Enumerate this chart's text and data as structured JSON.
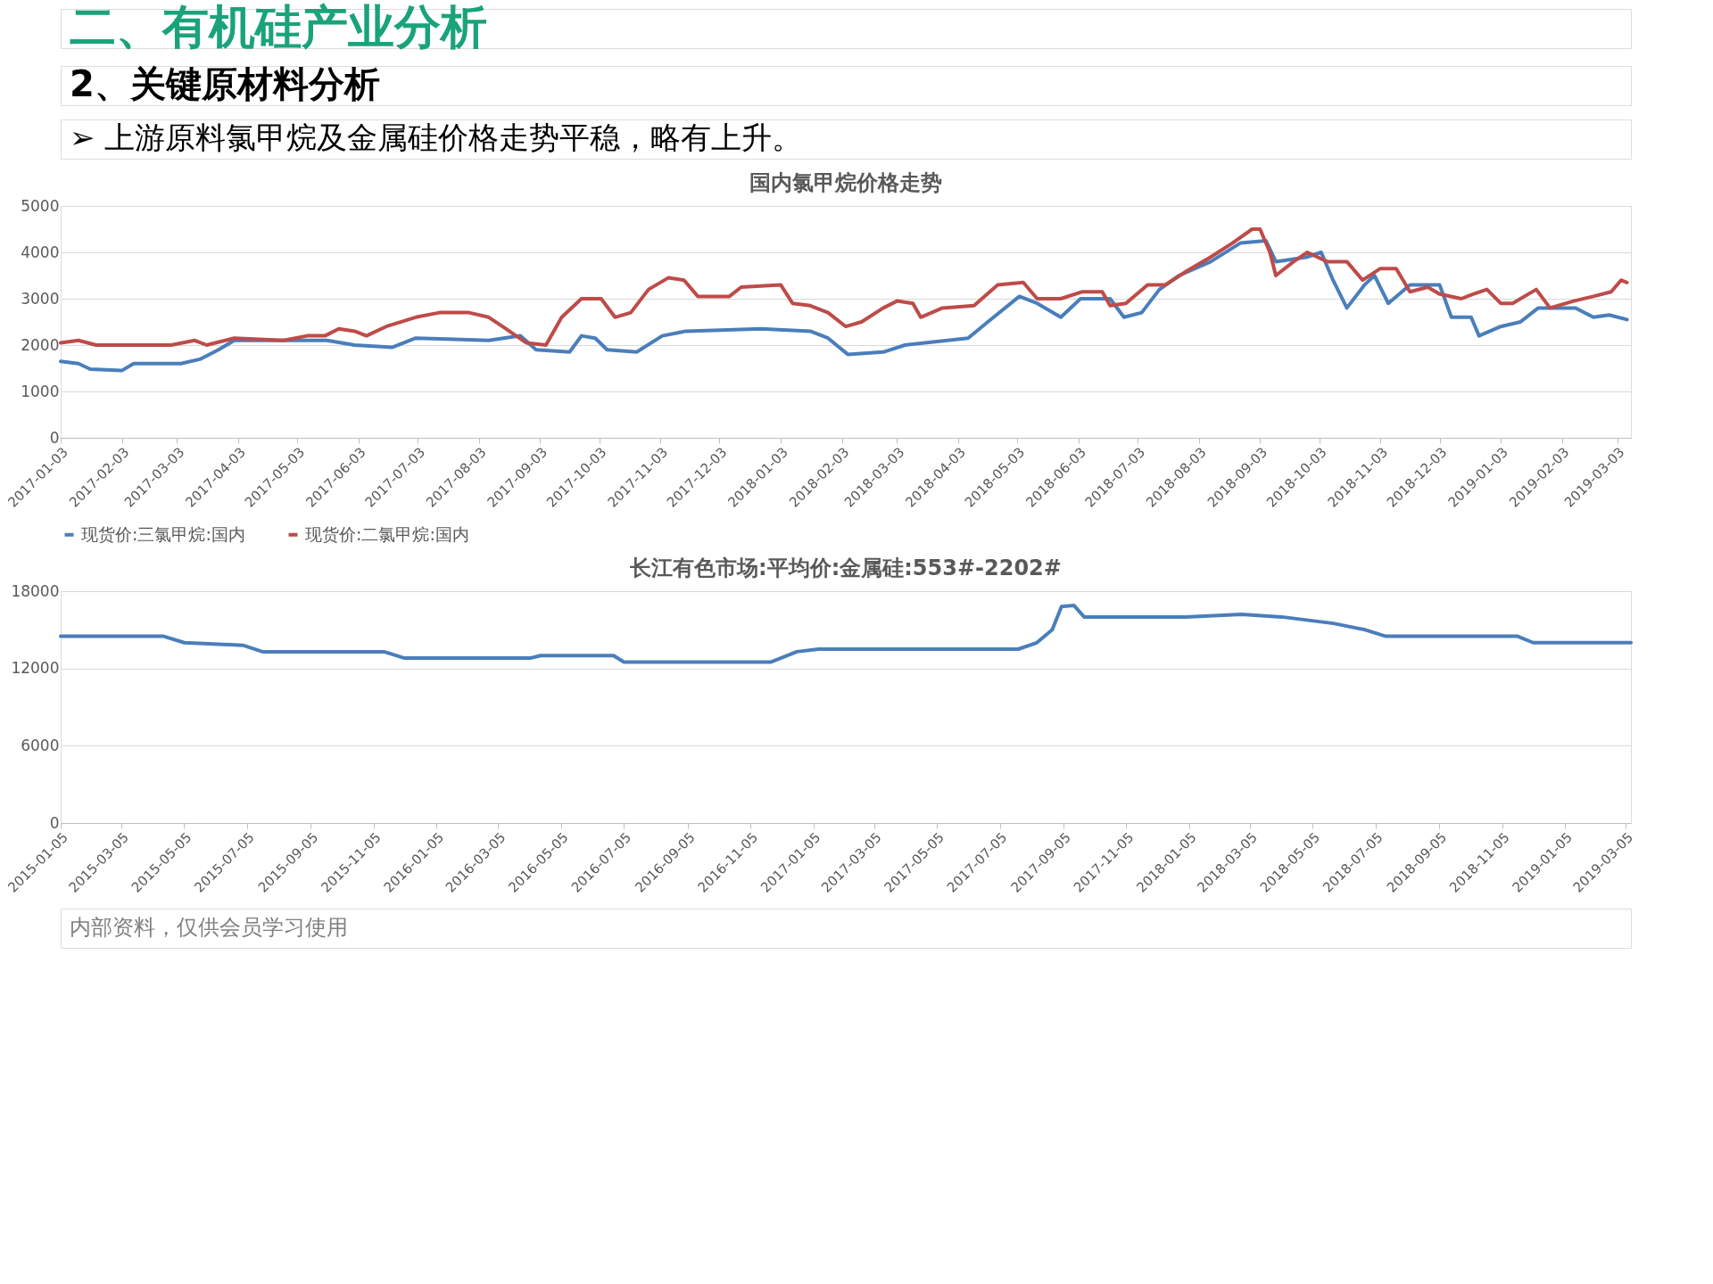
{
  "chart_data": [
    {
      "type": "line",
      "title": "国内氯甲烷价格走势",
      "annotations": [
        "二、有机硅产业分析",
        "2、关键原材料分析",
        "➢ 上游原料氯甲烷及金属硅价格走势平稳，略有上升。"
      ],
      "ylim": [
        0,
        5000
      ],
      "yticks": [
        0,
        1000,
        2000,
        3000,
        4000,
        5000
      ],
      "xlim": [
        "2017-01-03",
        "2019-03-10"
      ],
      "xticks": [
        "2017-01-03",
        "2017-02-03",
        "2017-03-03",
        "2017-04-03",
        "2017-05-03",
        "2017-06-03",
        "2017-07-03",
        "2017-08-03",
        "2017-09-03",
        "2017-10-03",
        "2017-11-03",
        "2017-12-03",
        "2018-01-03",
        "2018-02-03",
        "2018-03-03",
        "2018-04-03",
        "2018-05-03",
        "2018-06-03",
        "2018-07-03",
        "2018-08-03",
        "2018-09-03",
        "2018-10-03",
        "2018-11-03",
        "2018-12-03",
        "2019-01-03",
        "2019-02-03",
        "2019-03-03"
      ],
      "grid": "y",
      "legend": "bottom",
      "marker": "none",
      "line_style": "solid",
      "series": [
        {
          "name": "现货价:三氯甲烷:国内",
          "color": "#4a7ebb",
          "x": [
            "2017-01-03",
            "2017-01-12",
            "2017-01-18",
            "2017-02-03",
            "2017-02-09",
            "2017-03-05",
            "2017-03-15",
            "2017-03-24",
            "2017-04-01",
            "2017-05-18",
            "2017-06-01",
            "2017-06-20",
            "2017-07-02",
            "2017-08-08",
            "2017-08-24",
            "2017-09-01",
            "2017-09-18",
            "2017-09-24",
            "2017-10-01",
            "2017-10-07",
            "2017-10-22",
            "2017-11-04",
            "2017-11-16",
            "2017-12-24",
            "2018-01-18",
            "2018-01-27",
            "2018-02-06",
            "2018-02-24",
            "2018-03-07",
            "2018-04-08",
            "2018-04-18",
            "2018-05-04",
            "2018-05-13",
            "2018-05-25",
            "2018-06-04",
            "2018-06-19",
            "2018-06-26",
            "2018-07-05",
            "2018-07-14",
            "2018-07-24",
            "2018-08-09",
            "2018-08-24",
            "2018-09-06",
            "2018-09-11",
            "2018-09-27",
            "2018-10-04",
            "2018-10-10",
            "2018-10-17",
            "2018-10-26",
            "2018-10-31",
            "2018-11-07",
            "2018-11-18",
            "2018-12-03",
            "2018-12-09",
            "2018-12-19",
            "2018-12-23",
            "2019-01-03",
            "2019-01-13",
            "2019-01-22",
            "2019-02-10",
            "2019-02-19",
            "2019-02-27",
            "2019-03-08"
          ],
          "values": [
            1650,
            1600,
            1480,
            1450,
            1600,
            1600,
            1700,
            1900,
            2100,
            2100,
            2000,
            1950,
            2150,
            2100,
            2200,
            1900,
            1850,
            2200,
            2150,
            1900,
            1850,
            2200,
            2300,
            2350,
            2300,
            2150,
            1800,
            1850,
            2000,
            2150,
            2500,
            3050,
            2900,
            2600,
            3000,
            3000,
            2600,
            2700,
            3200,
            3500,
            3800,
            4200,
            4250,
            3800,
            3900,
            4000,
            3400,
            2800,
            3300,
            3500,
            2900,
            3300,
            3300,
            2600,
            2600,
            2200,
            2400,
            2500,
            2800,
            2800,
            2600,
            2650,
            2550
          ]
        },
        {
          "name": "现货价:二氯甲烷:国内",
          "color": "#be4b48",
          "x": [
            "2017-01-03",
            "2017-01-12",
            "2017-01-21",
            "2017-02-28",
            "2017-03-12",
            "2017-03-18",
            "2017-04-01",
            "2017-04-26",
            "2017-05-08",
            "2017-05-17",
            "2017-05-24",
            "2017-06-01",
            "2017-06-07",
            "2017-06-17",
            "2017-07-02",
            "2017-07-14",
            "2017-07-29",
            "2017-08-08",
            "2017-08-15",
            "2017-08-27",
            "2017-09-06",
            "2017-09-14",
            "2017-09-24",
            "2017-10-04",
            "2017-10-11",
            "2017-10-19",
            "2017-10-28",
            "2017-11-07",
            "2017-11-15",
            "2017-11-22",
            "2017-12-08",
            "2017-12-14",
            "2018-01-03",
            "2018-01-09",
            "2018-01-18",
            "2018-01-27",
            "2018-02-05",
            "2018-02-13",
            "2018-02-24",
            "2018-03-03",
            "2018-03-11",
            "2018-03-15",
            "2018-03-26",
            "2018-04-11",
            "2018-04-23",
            "2018-05-06",
            "2018-05-13",
            "2018-05-25",
            "2018-06-05",
            "2018-06-15",
            "2018-06-19",
            "2018-06-27",
            "2018-07-08",
            "2018-07-17",
            "2018-07-28",
            "2018-08-09",
            "2018-08-20",
            "2018-08-30",
            "2018-09-03",
            "2018-09-08",
            "2018-09-11",
            "2018-09-20",
            "2018-09-27",
            "2018-10-07",
            "2018-10-17",
            "2018-10-25",
            "2018-11-03",
            "2018-11-11",
            "2018-11-18",
            "2018-11-27",
            "2018-12-03",
            "2018-12-14",
            "2018-12-20",
            "2018-12-27",
            "2019-01-03",
            "2019-01-09",
            "2019-01-21",
            "2019-01-28",
            "2019-02-09",
            "2019-02-19",
            "2019-02-28",
            "2019-03-05",
            "2019-03-08"
          ],
          "values": [
            2050,
            2100,
            2000,
            2000,
            2100,
            2000,
            2150,
            2100,
            2200,
            2200,
            2350,
            2300,
            2200,
            2400,
            2600,
            2700,
            2700,
            2600,
            2400,
            2050,
            2000,
            2600,
            3000,
            3000,
            2600,
            2700,
            3200,
            3450,
            3400,
            3050,
            3050,
            3250,
            3300,
            2900,
            2850,
            2700,
            2400,
            2500,
            2800,
            2950,
            2900,
            2600,
            2800,
            2850,
            3300,
            3350,
            3000,
            3000,
            3150,
            3150,
            2850,
            2900,
            3300,
            3300,
            3600,
            3900,
            4200,
            4500,
            4500,
            4000,
            3500,
            3800,
            4000,
            3800,
            3800,
            3400,
            3650,
            3650,
            3150,
            3250,
            3100,
            3000,
            3100,
            3200,
            2900,
            2900,
            3200,
            2800,
            2950,
            3050,
            3150,
            3400,
            3350
          ]
        }
      ]
    },
    {
      "type": "line",
      "title": "长江有色市场:平均价:金属硅:553#-2202#",
      "annotations": [
        "内部资料，仅供会员学习使用"
      ],
      "ylim": [
        0,
        18000
      ],
      "yticks": [
        0,
        6000,
        12000,
        18000
      ],
      "xlim": [
        "2015-01-05",
        "2019-03-10"
      ],
      "xticks": [
        "2015-01-05",
        "2015-03-05",
        "2015-05-05",
        "2015-07-05",
        "2015-09-05",
        "2015-11-05",
        "2016-01-05",
        "2016-03-05",
        "2016-05-05",
        "2016-07-05",
        "2016-09-05",
        "2016-11-05",
        "2017-01-05",
        "2017-03-05",
        "2017-05-05",
        "2017-07-05",
        "2017-09-05",
        "2017-11-05",
        "2018-01-05",
        "2018-03-05",
        "2018-05-05",
        "2018-07-05",
        "2018-09-05",
        "2018-11-05",
        "2019-01-05",
        "2019-03-05"
      ],
      "grid": "y",
      "marker": "none",
      "line_style": "solid",
      "series": [
        {
          "color": "#4a7ebb",
          "x": [
            "2015-01-05",
            "2015-04-15",
            "2015-05-05",
            "2015-07-01",
            "2015-07-20",
            "2015-11-15",
            "2015-12-05",
            "2016-04-05",
            "2016-04-15",
            "2016-06-25",
            "2016-07-05",
            "2016-11-25",
            "2016-12-20",
            "2017-01-10",
            "2017-07-23",
            "2017-08-10",
            "2017-08-25",
            "2017-09-03",
            "2017-09-15",
            "2017-09-25",
            "2018-01-01",
            "2018-02-25",
            "2018-04-05",
            "2018-05-25",
            "2018-06-25",
            "2018-07-15",
            "2018-11-20",
            "2018-12-05",
            "2019-03-10"
          ],
          "values": [
            14500,
            14500,
            14000,
            13800,
            13300,
            13300,
            12800,
            12800,
            13000,
            13000,
            12500,
            12500,
            13300,
            13500,
            13500,
            14000,
            15000,
            16800,
            16900,
            16000,
            16000,
            16200,
            16000,
            15500,
            15000,
            14500,
            14500,
            14000,
            14000
          ]
        }
      ]
    }
  ]
}
